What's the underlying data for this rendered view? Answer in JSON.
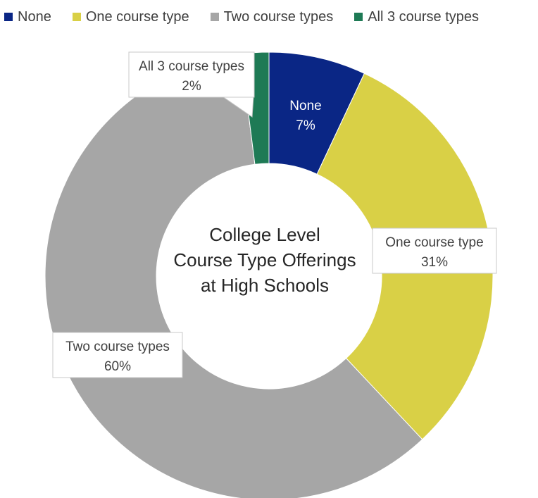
{
  "chart_data": {
    "type": "pie",
    "variant": "donut",
    "title": "College Level Course Type Offerings at High Schools",
    "title_lines": [
      "College Level",
      "Course Type Offerings",
      "at High Schools"
    ],
    "legend_position": "top",
    "slices": [
      {
        "name": "None",
        "value": 7,
        "label": "7%",
        "color": "#0a2685"
      },
      {
        "name": "One course type",
        "value": 31,
        "label": "31%",
        "color": "#d9d046"
      },
      {
        "name": "Two course types",
        "value": 60,
        "label": "60%",
        "color": "#a6a6a6"
      },
      {
        "name": "All 3 course types",
        "value": 2,
        "label": "2%",
        "color": "#1e7a55"
      }
    ]
  }
}
